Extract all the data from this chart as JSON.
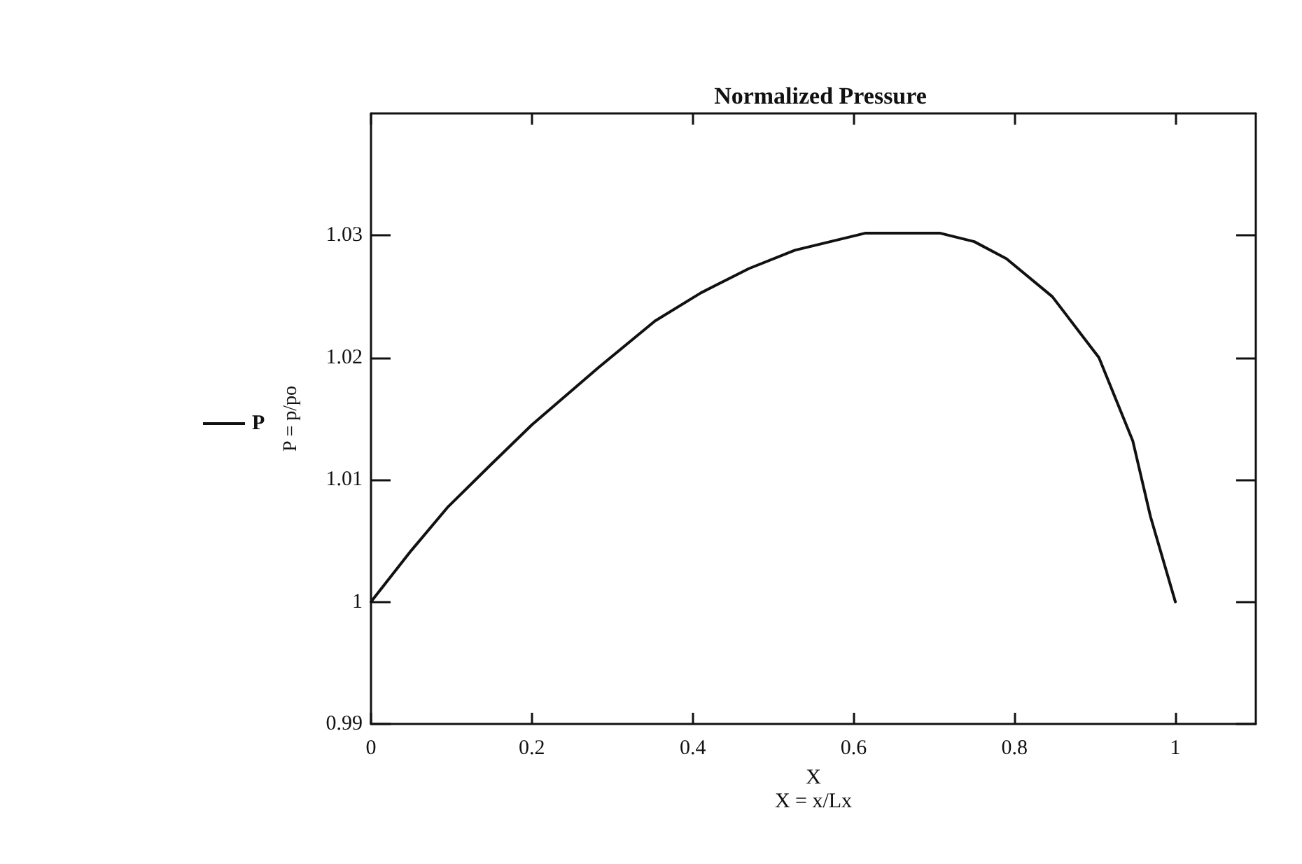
{
  "chart_data": {
    "type": "line",
    "title": "Normalized Pressure",
    "xlabel": "X\nX = x/Lx",
    "ylabel": "P = p/po",
    "x": [
      0,
      0.05,
      0.096,
      0.15,
      0.2,
      0.283,
      0.353,
      0.41,
      0.47,
      0.527,
      0.615,
      0.707,
      0.75,
      0.79,
      0.847,
      0.905,
      0.947,
      0.969,
      1
    ],
    "series": [
      {
        "name": "P",
        "color": "#111111",
        "values": [
          1,
          1.0042,
          1.0078,
          1.0113,
          1.0145,
          1.0192,
          1.023,
          1.0253,
          1.0273,
          1.0288,
          1.0302,
          1.0302,
          1.0295,
          1.0281,
          1.025,
          1.02,
          1.0132,
          1.007,
          1
        ]
      }
    ],
    "xlim": [
      0,
      1.1
    ],
    "xticks": [
      0,
      0.2,
      0.4,
      0.6,
      0.8,
      1
    ],
    "ylim": [
      0.99,
      1.04
    ],
    "yticks": [
      0.99,
      1,
      1.01,
      1.02,
      1.03
    ],
    "grid": false,
    "legend": "left",
    "marker": "none",
    "line_style": "solid"
  }
}
